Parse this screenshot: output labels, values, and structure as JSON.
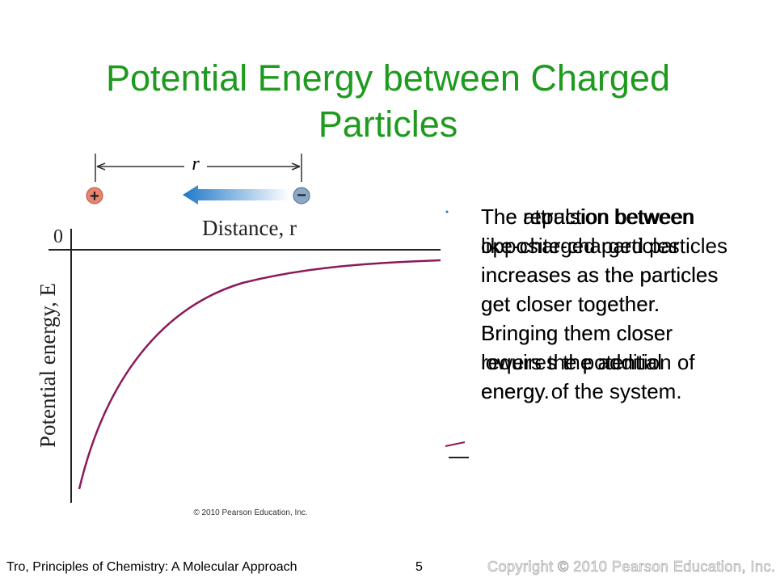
{
  "slide": {
    "title": "Potential Energy between Charged Particles",
    "figure": {
      "distance_symbol": "r",
      "plus_sign": "+",
      "minus_sign": "−",
      "x_axis_label": "Distance, r",
      "zero_label": "0",
      "y_axis_label": "Potential energy, E",
      "credit": "© 2010 Pearson Education, Inc."
    },
    "text_attraction": "The attraction between opposite-charged particles increases as the particles get closer together. Bringing them closer lowers the potential energy of the system.",
    "text_repulsion": "The repulsion between like-charged particles increases as the particles get closer together. Bringing them closer requires the addition of energy.",
    "footer": {
      "source": "Tro, Principles of Chemistry: A Molecular Approach",
      "page_number": "5",
      "copyright": "Copyright © 2010 Pearson Education, Inc."
    }
  }
}
